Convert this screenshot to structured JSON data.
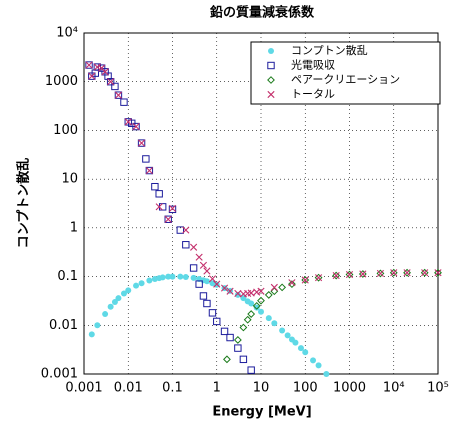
{
  "chart_data": {
    "type": "scatter",
    "title": "鉛の質量減衰係数",
    "x_label": "Energy [MeV]",
    "y_label": "コンプトン散乱",
    "xscale": "log",
    "yscale": "log",
    "grid": true,
    "legend": "upper right",
    "xlim": [
      0.001,
      100000
    ],
    "ylim": [
      0.001,
      10000
    ],
    "xticks": [
      0.001,
      0.01,
      0.1,
      1,
      10,
      100,
      1000,
      {
        "value": 10000,
        "label": "10⁴"
      },
      {
        "value": 100000,
        "label": "10⁵"
      }
    ],
    "yticks": [
      0.001,
      0.01,
      0.1,
      1,
      10,
      100,
      1000,
      {
        "value": 10000,
        "label": "10⁴"
      }
    ],
    "series": [
      {
        "name": "コンプトン散乱",
        "color": "#5fd9e6",
        "marker": "circle",
        "x": [
          0.0015,
          0.002,
          0.003,
          0.004,
          0.005,
          0.006,
          0.008,
          0.01,
          0.015,
          0.02,
          0.03,
          0.04,
          0.05,
          0.06,
          0.08,
          0.1,
          0.15,
          0.2,
          0.3,
          0.4,
          0.5,
          0.6,
          0.8,
          1,
          1.5,
          2,
          3,
          4,
          5,
          6,
          8,
          10,
          15,
          20,
          30,
          40,
          50,
          60,
          80,
          100,
          150,
          200,
          300
        ],
        "values": [
          0.0065,
          0.01,
          0.017,
          0.024,
          0.03,
          0.036,
          0.045,
          0.052,
          0.065,
          0.073,
          0.083,
          0.089,
          0.093,
          0.096,
          0.1,
          0.1,
          0.1,
          0.098,
          0.094,
          0.089,
          0.084,
          0.08,
          0.073,
          0.068,
          0.058,
          0.051,
          0.042,
          0.036,
          0.031,
          0.028,
          0.023,
          0.019,
          0.014,
          0.011,
          0.0078,
          0.0062,
          0.0051,
          0.0044,
          0.0034,
          0.0028,
          0.0019,
          0.0015,
          0.001
        ]
      },
      {
        "name": "光電吸収",
        "color": "#1c1c9c",
        "marker": "square",
        "x": [
          0.0013,
          0.0015,
          0.0018,
          0.002,
          0.0025,
          0.003,
          0.0035,
          0.004,
          0.005,
          0.006,
          0.008,
          0.01,
          0.012,
          0.015,
          0.02,
          0.025,
          0.03,
          0.04,
          0.05,
          0.06,
          0.08,
          0.1,
          0.15,
          0.2,
          0.3,
          0.4,
          0.5,
          0.6,
          0.8,
          1,
          1.5,
          2,
          3,
          4,
          6
        ],
        "values": [
          2200,
          1300,
          1500,
          2000,
          1900,
          1600,
          1300,
          1000,
          800,
          530,
          380,
          150,
          140,
          120,
          55,
          26,
          15,
          7,
          5,
          2.7,
          1.5,
          2.4,
          0.9,
          0.45,
          0.15,
          0.07,
          0.04,
          0.028,
          0.018,
          0.012,
          0.0075,
          0.0056,
          0.0034,
          0.002,
          0.0012
        ]
      },
      {
        "name": "ペアークリエーション",
        "color": "#1a7a1a",
        "marker": "diamond",
        "x": [
          1.7,
          3,
          4,
          5,
          6,
          8,
          10,
          15,
          20,
          30,
          50,
          100,
          200,
          500,
          1000,
          2000,
          5000,
          10000,
          20000,
          50000,
          100000
        ],
        "values": [
          0.002,
          0.005,
          0.009,
          0.013,
          0.017,
          0.025,
          0.032,
          0.042,
          0.05,
          0.06,
          0.07,
          0.085,
          0.095,
          0.105,
          0.11,
          0.113,
          0.116,
          0.12,
          0.12,
          0.12,
          0.12
        ]
      },
      {
        "name": "トータル",
        "color": "#c4306c",
        "marker": "x",
        "x": [
          0.0013,
          0.0015,
          0.002,
          0.0025,
          0.003,
          0.004,
          0.006,
          0.01,
          0.015,
          0.02,
          0.03,
          0.05,
          0.08,
          0.1,
          0.2,
          0.3,
          0.4,
          0.5,
          0.6,
          0.8,
          1,
          1.5,
          2,
          3,
          4,
          5,
          6,
          8,
          10,
          20,
          50,
          100,
          200,
          500,
          1000,
          2000,
          5000,
          10000,
          20000,
          50000,
          100000
        ],
        "values": [
          2200,
          1300,
          2000,
          1900,
          1600,
          1000,
          530,
          150,
          120,
          55,
          15,
          2.7,
          1.5,
          2.5,
          0.9,
          0.4,
          0.25,
          0.17,
          0.13,
          0.09,
          0.07,
          0.058,
          0.05,
          0.045,
          0.044,
          0.045,
          0.046,
          0.048,
          0.05,
          0.06,
          0.075,
          0.085,
          0.095,
          0.105,
          0.11,
          0.113,
          0.116,
          0.12,
          0.12,
          0.12,
          0.12
        ]
      }
    ]
  }
}
